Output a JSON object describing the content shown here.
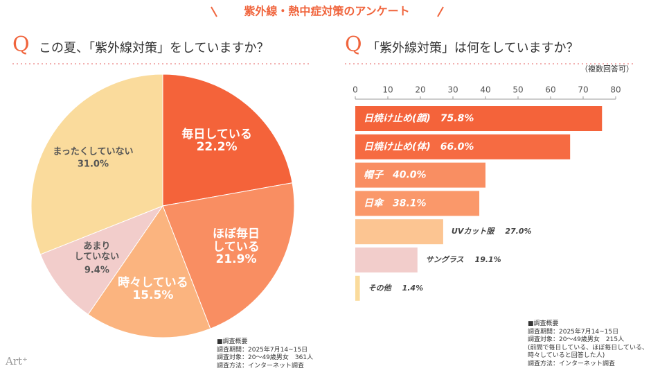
{
  "page_title": "紫外線・熱中症対策のアンケート",
  "logo": "Art⁺",
  "chart_data": [
    {
      "type": "pie",
      "title_marker": "Q",
      "title": "この夏、「紫外線対策」をしていますか？",
      "categories": [
        "毎日している",
        "ほぼ毎日\nしている",
        "時々している",
        "あまり\nしていない",
        "まったくしていない"
      ],
      "values": [
        22.2,
        21.9,
        15.5,
        9.4,
        31.0
      ],
      "value_labels": [
        "22.2%",
        "21.9%",
        "15.5%",
        "9.4%",
        "31.0%"
      ],
      "colors": [
        "#f4633a",
        "#f98e62",
        "#fbb47f",
        "#f2cdcb",
        "#fadb9c"
      ],
      "note": [
        "■調査概要",
        "調査期間：2025年7月14~15日",
        "調査対象：20～49歳男女　361人",
        "調査方法：インターネット調査"
      ]
    },
    {
      "type": "bar",
      "orientation": "horizontal",
      "title_marker": "Q",
      "title": "「紫外線対策」は何をしていますか？",
      "subtitle": "（複数回答可）",
      "categories": [
        "日焼け止め(顔)",
        "日焼け止め(体)",
        "帽子",
        "日傘",
        "UVカット服",
        "サングラス",
        "その他"
      ],
      "values": [
        75.8,
        66.0,
        40.0,
        38.1,
        27.0,
        19.1,
        1.4
      ],
      "value_labels": [
        "75.8%",
        "66.0%",
        "40.0%",
        "38.1%",
        "27.0%",
        "19.1%",
        "1.4%"
      ],
      "colors": [
        "#f4633a",
        "#f66b42",
        "#f98e62",
        "#fa986a",
        "#fcc592",
        "#f2cdcb",
        "#fadb9c"
      ],
      "xlim": [
        0,
        80
      ],
      "xticks": [
        0,
        10,
        20,
        30,
        40,
        50,
        60,
        70,
        80
      ],
      "note": [
        "■調査概要",
        "調査期間：2025年7月14~15日",
        "調査対象：20～49歳男女　215人",
        "(前問で毎日している、ほぼ毎日している、",
        "時々していると回答した人)",
        "調査方法：インターネット調査"
      ]
    }
  ]
}
